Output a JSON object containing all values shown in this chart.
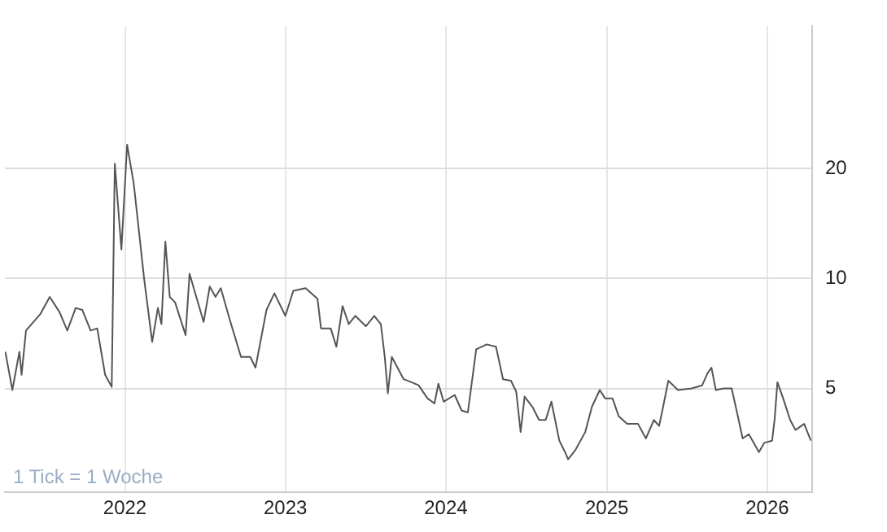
{
  "chart_data": {
    "type": "line",
    "x": [
      "2021-04-04",
      "2021-04-20",
      "2021-05-06",
      "2021-05-11",
      "2021-05-21",
      "2021-06-23",
      "2021-07-14",
      "2021-08-05",
      "2021-08-23",
      "2021-09-11",
      "2021-09-26",
      "2021-10-15",
      "2021-10-30",
      "2021-11-17",
      "2021-12-02",
      "2021-12-09",
      "2021-12-24",
      "2022-01-06",
      "2022-01-21",
      "2022-02-14",
      "2022-03-04",
      "2022-03-17",
      "2022-03-25",
      "2022-04-03",
      "2022-04-13",
      "2022-04-25",
      "2022-05-19",
      "2022-05-28",
      "2022-06-29",
      "2022-07-13",
      "2022-07-26",
      "2022-08-07",
      "2022-08-29",
      "2022-09-22",
      "2022-10-13",
      "2022-10-25",
      "2022-11-19",
      "2022-12-07",
      "2023-01-01",
      "2023-01-19",
      "2023-02-16",
      "2023-03-15",
      "2023-03-23",
      "2023-04-14",
      "2023-04-27",
      "2023-05-11",
      "2023-05-25",
      "2023-06-09",
      "2023-07-03",
      "2023-07-22",
      "2023-08-06",
      "2023-08-15",
      "2023-08-22",
      "2023-08-31",
      "2023-09-27",
      "2023-10-15",
      "2023-10-31",
      "2023-11-20",
      "2023-12-06",
      "2023-12-15",
      "2023-12-27",
      "2024-01-21",
      "2024-02-06",
      "2024-02-20",
      "2024-03-10",
      "2024-04-03",
      "2024-04-24",
      "2024-05-10",
      "2024-05-28",
      "2024-06-09",
      "2024-06-19",
      "2024-06-28",
      "2024-07-16",
      "2024-07-31",
      "2024-08-15",
      "2024-08-28",
      "2024-09-15",
      "2024-09-28",
      "2024-10-05",
      "2024-10-22",
      "2024-11-13",
      "2024-11-28",
      "2024-12-16",
      "2024-12-28",
      "2025-01-14",
      "2025-01-28",
      "2025-02-16",
      "2025-03-13",
      "2025-03-31",
      "2025-04-18",
      "2025-04-30",
      "2025-05-09",
      "2025-05-21",
      "2025-06-12",
      "2025-07-13",
      "2025-08-06",
      "2025-08-18",
      "2025-08-27",
      "2025-09-06",
      "2025-09-24",
      "2025-10-12",
      "2025-10-27",
      "2025-11-06",
      "2025-11-20",
      "2025-12-13",
      "2025-12-25",
      "2026-01-12",
      "2026-01-18",
      "2026-01-24",
      "2026-02-06",
      "2026-02-22",
      "2026-03-06",
      "2026-03-26",
      "2026-04-10"
    ],
    "series": [
      {
        "color": "#555555",
        "values": [
          6.3,
          4.95,
          6.3,
          5.45,
          7.2,
          8.0,
          8.9,
          8.1,
          7.2,
          8.3,
          8.2,
          7.2,
          7.3,
          5.45,
          5.05,
          20.6,
          12.0,
          23.2,
          18.2,
          9.9,
          6.7,
          8.3,
          7.5,
          12.6,
          8.9,
          8.6,
          7.0,
          10.3,
          7.6,
          9.5,
          8.9,
          9.4,
          7.6,
          6.1,
          6.1,
          5.7,
          8.2,
          9.1,
          7.9,
          9.25,
          9.4,
          8.8,
          7.3,
          7.3,
          6.5,
          8.4,
          7.5,
          7.9,
          7.4,
          7.9,
          7.5,
          6.1,
          4.85,
          6.1,
          5.3,
          5.2,
          5.1,
          4.7,
          4.55,
          5.15,
          4.6,
          4.8,
          4.35,
          4.3,
          6.4,
          6.6,
          6.5,
          5.3,
          5.25,
          4.9,
          3.8,
          4.75,
          4.45,
          4.1,
          4.1,
          4.6,
          3.6,
          3.35,
          3.2,
          3.4,
          3.8,
          4.45,
          4.95,
          4.7,
          4.7,
          4.2,
          4.0,
          4.0,
          3.65,
          4.1,
          3.95,
          4.45,
          5.25,
          4.95,
          5.0,
          5.1,
          5.5,
          5.7,
          4.95,
          5.0,
          5.0,
          4.15,
          3.65,
          3.75,
          3.35,
          3.55,
          3.6,
          4.15,
          5.2,
          4.7,
          4.1,
          3.85,
          4.0,
          3.6
        ]
      }
    ],
    "log": "y",
    "xlim": [
      "2021-04-03",
      "2026-04-13"
    ],
    "ylim": [
      2.6,
      49
    ],
    "yticks": [
      5,
      10,
      20
    ],
    "xticks": [
      {
        "value": "2022-01-01",
        "label": "2022"
      },
      {
        "value": "2023-01-01",
        "label": "2023"
      },
      {
        "value": "2024-01-01",
        "label": "2024"
      },
      {
        "value": "2025-01-01",
        "label": "2025"
      },
      {
        "value": "2026-01-01",
        "label": "2026"
      }
    ],
    "grid": true,
    "legend": false,
    "marker": "none",
    "line_style": "solid",
    "annotations": [
      "1 Tick = 1 Woche"
    ]
  }
}
